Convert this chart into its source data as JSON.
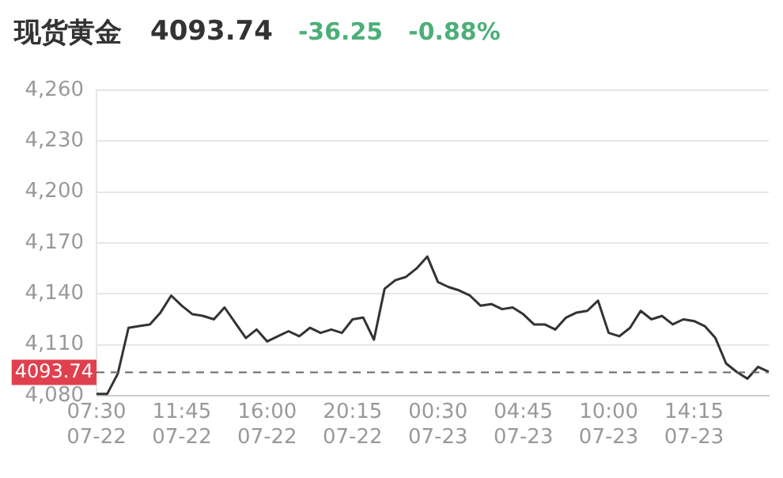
{
  "chart_data": {
    "type": "line",
    "title": "现货黄金",
    "annotations": [
      "4093.74",
      "-36.25",
      "-0.88%"
    ],
    "categories": [
      "07:30\n07-22",
      null,
      null,
      null,
      null,
      null,
      null,
      null,
      "11:45\n07-22",
      null,
      null,
      null,
      null,
      null,
      null,
      null,
      "16:00\n07-22",
      null,
      null,
      null,
      null,
      null,
      null,
      null,
      "20:15\n07-22",
      null,
      null,
      null,
      null,
      null,
      null,
      null,
      "00:30\n07-23",
      null,
      null,
      null,
      null,
      null,
      null,
      null,
      "04:45\n07-23",
      null,
      null,
      null,
      null,
      null,
      null,
      null,
      "10:00\n07-23",
      null,
      null,
      null,
      null,
      null,
      null,
      null,
      "14:15\n07-23",
      null,
      null,
      null,
      null,
      null,
      null,
      null
    ],
    "series": [
      {
        "color": "#333333",
        "values": [
          4081,
          4081,
          4093,
          4120,
          4121,
          4122,
          4129,
          4139,
          4133,
          4128,
          4127,
          4125,
          4132,
          4123,
          4114,
          4119,
          4112,
          4115,
          4118,
          4115,
          4120,
          4117,
          4119,
          4117,
          4125,
          4126,
          4113,
          4143,
          4148,
          4150,
          4155,
          4162,
          4147,
          4144,
          4142,
          4139,
          4133,
          4134,
          4131,
          4132,
          4128,
          4122,
          4122,
          4119,
          4126,
          4129,
          4130,
          4136,
          4117,
          4115,
          4120,
          4130,
          4125,
          4127,
          4122,
          4125,
          4124,
          4121,
          4114,
          4099,
          4094,
          4090,
          4097,
          4094
        ]
      }
    ],
    "ylim": [
      4080,
      4260
    ],
    "yticks": [
      {
        "value": 4080,
        "label": "4,080"
      },
      {
        "value": 4110,
        "label": "4,110"
      },
      {
        "value": 4140,
        "label": "4,140"
      },
      {
        "value": 4170,
        "label": "4,170"
      },
      {
        "value": 4200,
        "label": "4,200"
      },
      {
        "value": 4230,
        "label": "4,230"
      },
      {
        "value": 4260,
        "label": "4,260"
      }
    ],
    "ref_lines": [
      {
        "axis": "y",
        "value": 4093.74,
        "label": "4093.74",
        "color": "#666666",
        "line_style": "dashed"
      }
    ],
    "grid": "y",
    "marker": "none",
    "line_style": "solid",
    "legend": false
  }
}
